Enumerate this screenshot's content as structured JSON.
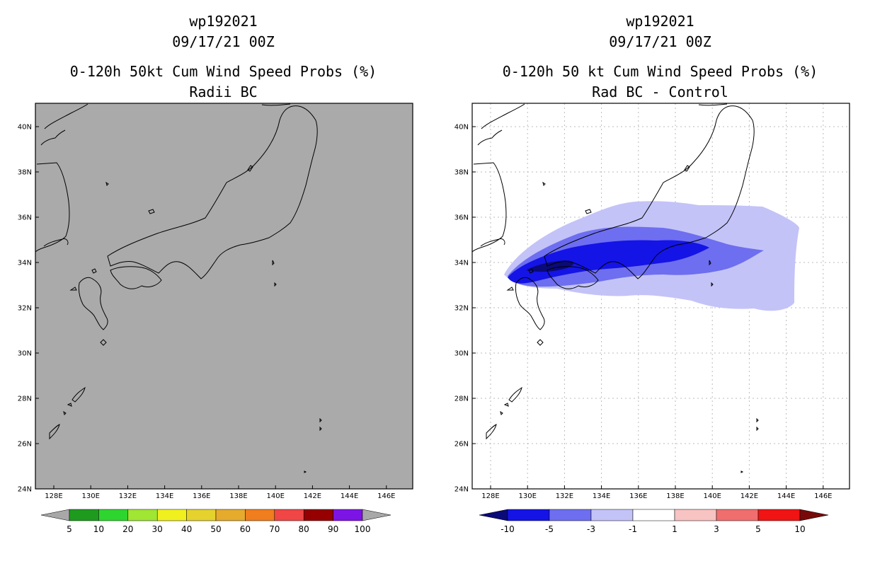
{
  "left": {
    "storm_id": "wp192021",
    "datetime": "09/17/21 00Z",
    "product": "0-120h 50kt Cum Wind Speed Probs (%)",
    "subtitle": "Radii BC",
    "map_bg": "#aaaaaa",
    "colorbar": {
      "labels": [
        "5",
        "10",
        "20",
        "30",
        "40",
        "50",
        "60",
        "70",
        "80",
        "90",
        "100"
      ],
      "colors": [
        "#1e9b1e",
        "#2fd52f",
        "#a0e632",
        "#f0f01e",
        "#e6d22d",
        "#e6aa2d",
        "#f07d1e",
        "#f04646",
        "#960000",
        "#7d14e6"
      ],
      "under_color": "#a8a8a8",
      "over_color": "#a8a8a8"
    }
  },
  "right": {
    "storm_id": "wp192021",
    "datetime": "09/17/21 00Z",
    "product": "0-120h 50 kt Cum Wind Speed Probs (%)",
    "subtitle": "Rad BC - Control",
    "colorbar": {
      "labels": [
        "-10",
        "-5",
        "-3",
        "-1",
        "1",
        "3",
        "5",
        "10"
      ],
      "colors": [
        "#1414e6",
        "#6e6ef0",
        "#c3c3f8",
        "#ffffff",
        "#f8c3c3",
        "#f06e6e",
        "#f01414"
      ],
      "under_color": "#0a0a78",
      "over_color": "#780a0a"
    }
  },
  "axes": {
    "lon_labels": [
      "128E",
      "130E",
      "132E",
      "134E",
      "136E",
      "138E",
      "140E",
      "142E",
      "144E",
      "146E"
    ],
    "lat_labels": [
      "24N",
      "26N",
      "28N",
      "30N",
      "32N",
      "34N",
      "36N",
      "38N",
      "40N"
    ]
  },
  "difference_field": {
    "levels": [
      "-1",
      "-3",
      "-5",
      "-10"
    ],
    "colors": [
      "#c3c3f8",
      "#6e6ef0",
      "#1414e6",
      "#0a0a78"
    ]
  }
}
